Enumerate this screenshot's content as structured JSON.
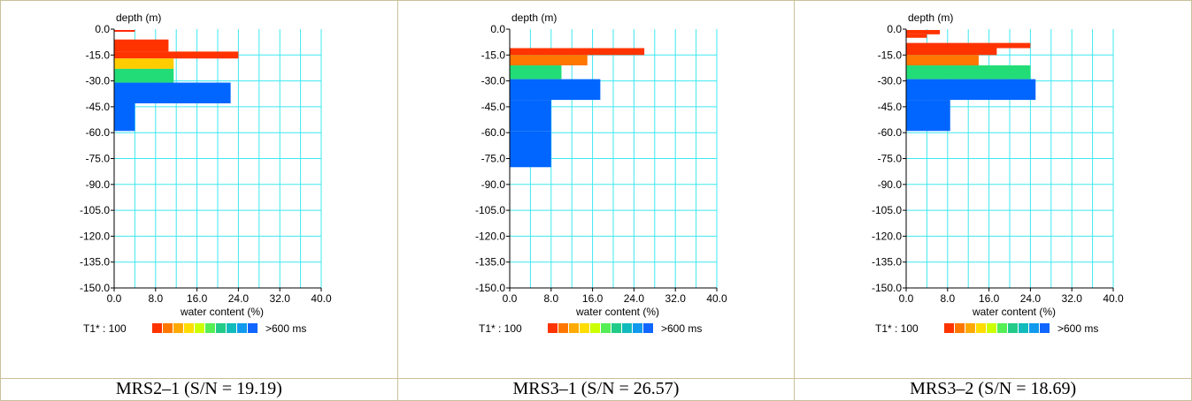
{
  "chart_data": [
    {
      "type": "bar",
      "orientation": "horizontal",
      "ylabel": "depth (m)",
      "xlabel": "water content (%)",
      "xticks": [
        "0.0",
        "8.0",
        "16.0",
        "24.0",
        "32.0",
        "40.0"
      ],
      "yticks": [
        "0.0",
        "-15.0",
        "-30.0",
        "-45.0",
        "-60.0",
        "-75.0",
        "-90.0",
        "-105.0",
        "-120.0",
        "-135.0",
        "-150.0"
      ],
      "xlim": [
        0,
        40
      ],
      "ylim": [
        -150,
        0
      ],
      "grid": true,
      "legend": {
        "prefix": "T1* : 100",
        "suffix": ">600 ms",
        "colors": [
          "#ff3300",
          "#ff7700",
          "#ffaa00",
          "#ffdd00",
          "#ccff00",
          "#55ee55",
          "#22cc88",
          "#11bbbb",
          "#1199ee",
          "#1166ff"
        ]
      },
      "layers": [
        {
          "top": -0.5,
          "bottom": -1.5,
          "value": 4,
          "color": "#ff2200"
        },
        {
          "top": -6,
          "bottom": -13,
          "value": 10.5,
          "color": "#ff3300"
        },
        {
          "top": -13,
          "bottom": -17,
          "value": 24,
          "color": "#ff3300"
        },
        {
          "top": -17,
          "bottom": -23,
          "value": 11.5,
          "color": "#ffcc00"
        },
        {
          "top": -23,
          "bottom": -31,
          "value": 11.5,
          "color": "#22dd77"
        },
        {
          "top": -31,
          "bottom": -43,
          "value": 22.5,
          "color": "#0066ff"
        },
        {
          "top": -43,
          "bottom": -59,
          "value": 4,
          "color": "#0066ff"
        }
      ],
      "caption": "MRS2–1 (S/N = 19.19)"
    },
    {
      "type": "bar",
      "orientation": "horizontal",
      "ylabel": "depth (m)",
      "xlabel": "water content (%)",
      "xticks": [
        "0.0",
        "8.0",
        "16.0",
        "24.0",
        "32.0",
        "40.0"
      ],
      "yticks": [
        "0.0",
        "-15.0",
        "-30.0",
        "-45.0",
        "-60.0",
        "-75.0",
        "-90.0",
        "-105.0",
        "-120.0",
        "-135.0",
        "-150.0"
      ],
      "xlim": [
        0,
        40
      ],
      "ylim": [
        -150,
        0
      ],
      "grid": true,
      "legend": {
        "prefix": "T1* : 100",
        "suffix": ">600 ms",
        "colors": [
          "#ff3300",
          "#ff7700",
          "#ffaa00",
          "#ffdd00",
          "#ccff00",
          "#55ee55",
          "#22cc88",
          "#11bbbb",
          "#1199ee",
          "#1166ff"
        ]
      },
      "layers": [
        {
          "top": -11,
          "bottom": -15,
          "value": 26,
          "color": "#ff3300"
        },
        {
          "top": -15,
          "bottom": -21,
          "value": 15,
          "color": "#ff7700"
        },
        {
          "top": -21,
          "bottom": -29,
          "value": 10,
          "color": "#22dd77"
        },
        {
          "top": -29,
          "bottom": -41,
          "value": 17.5,
          "color": "#0066ff"
        },
        {
          "top": -41,
          "bottom": -59,
          "value": 8,
          "color": "#0066ff"
        },
        {
          "top": -59,
          "bottom": -80,
          "value": 8,
          "color": "#0066ff"
        }
      ],
      "caption": "MRS3–1 (S/N = 26.57)"
    },
    {
      "type": "bar",
      "orientation": "horizontal",
      "ylabel": "depth (m)",
      "xlabel": "water content (%)",
      "xticks": [
        "0.0",
        "8.0",
        "16.0",
        "24.0",
        "32.0",
        "40.0"
      ],
      "yticks": [
        "0.0",
        "-15.0",
        "-30.0",
        "-45.0",
        "-60.0",
        "-75.0",
        "-90.0",
        "-105.0",
        "-120.0",
        "-135.0",
        "-150.0"
      ],
      "xlim": [
        0,
        40
      ],
      "ylim": [
        -150,
        0
      ],
      "grid": true,
      "legend": {
        "prefix": "T1* : 100",
        "suffix": ">600 ms",
        "colors": [
          "#ff3300",
          "#ff7700",
          "#ffaa00",
          "#ffdd00",
          "#ccff00",
          "#55ee55",
          "#22cc88",
          "#11bbbb",
          "#1199ee",
          "#1166ff"
        ]
      },
      "layers": [
        {
          "top": -0.5,
          "bottom": -3,
          "value": 6.5,
          "color": "#ff3300"
        },
        {
          "top": -3,
          "bottom": -5,
          "value": 4,
          "color": "#ff3300"
        },
        {
          "top": -8,
          "bottom": -11,
          "value": 24,
          "color": "#ff3300"
        },
        {
          "top": -11,
          "bottom": -15,
          "value": 17.5,
          "color": "#ff3300"
        },
        {
          "top": -15,
          "bottom": -21,
          "value": 14,
          "color": "#ff7700"
        },
        {
          "top": -21,
          "bottom": -29,
          "value": 24,
          "color": "#22dd77"
        },
        {
          "top": -29,
          "bottom": -41,
          "value": 25,
          "color": "#0066ff"
        },
        {
          "top": -41,
          "bottom": -59,
          "value": 8.5,
          "color": "#0066ff"
        }
      ],
      "caption": "MRS3–2 (S/N = 18.69)"
    }
  ]
}
